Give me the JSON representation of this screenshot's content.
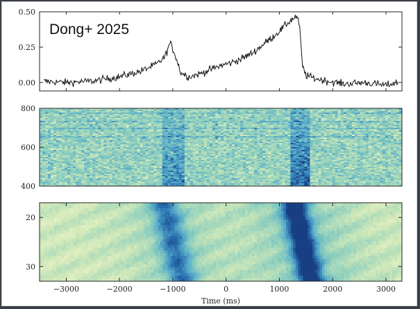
{
  "chart_data": [
    {
      "type": "line",
      "panel": "pulse-profile",
      "annotation": "Dong+ 2025",
      "xlim": [
        -3500,
        3300
      ],
      "ylim": [
        -0.06,
        0.5
      ],
      "yticks": [
        0.0,
        0.25,
        0.5
      ],
      "ytick_labels": [
        "0.00",
        "0.25",
        "0.50"
      ],
      "x": [
        -3500,
        -3000,
        -2500,
        -2000,
        -1600,
        -1300,
        -1150,
        -1050,
        -950,
        -850,
        -700,
        -500,
        -300,
        -100,
        100,
        300,
        500,
        700,
        900,
        1050,
        1150,
        1250,
        1320,
        1380,
        1430,
        1500,
        1650,
        1900,
        2200,
        2600,
        3000,
        3200
      ],
      "y": [
        0.01,
        0.0,
        0.01,
        0.04,
        0.08,
        0.13,
        0.18,
        0.28,
        0.19,
        0.07,
        0.04,
        0.06,
        0.09,
        0.12,
        0.14,
        0.17,
        0.21,
        0.27,
        0.33,
        0.38,
        0.42,
        0.45,
        0.47,
        0.4,
        0.12,
        0.05,
        0.03,
        0.01,
        -0.01,
        0.0,
        -0.02,
        0.0
      ],
      "color": "#111111"
    },
    {
      "type": "heatmap",
      "panel": "frequency-time",
      "yticks": [
        400,
        600,
        800
      ],
      "ytick_labels": [
        "400",
        "600",
        "800"
      ],
      "ylim": [
        400,
        800
      ],
      "colormap": [
        "#f7f6c8",
        "#c9e6b9",
        "#8fcfbe",
        "#5aaec9",
        "#2f78b4",
        "#183f83"
      ],
      "bursts_x": [
        -1000,
        1350
      ]
    },
    {
      "type": "heatmap",
      "panel": "pulse-stack",
      "xlim": [
        -3500,
        3300
      ],
      "xticks": [
        -3000,
        -2000,
        -1000,
        0,
        1000,
        2000,
        3000
      ],
      "xtick_labels": [
        "−3000",
        "−2000",
        "−1000",
        "0",
        "1000",
        "2000",
        "3000"
      ],
      "xlabel": "Time (ms)",
      "yticks": [
        20,
        30
      ],
      "ytick_labels": [
        "20",
        "30"
      ],
      "ylim": [
        33,
        17
      ],
      "bursts_x": [
        -1000,
        1350
      ],
      "colormap": [
        "#f7f6c8",
        "#c9e6b9",
        "#8fcfbe",
        "#5aaec9",
        "#2f78b4",
        "#183f83"
      ]
    }
  ]
}
